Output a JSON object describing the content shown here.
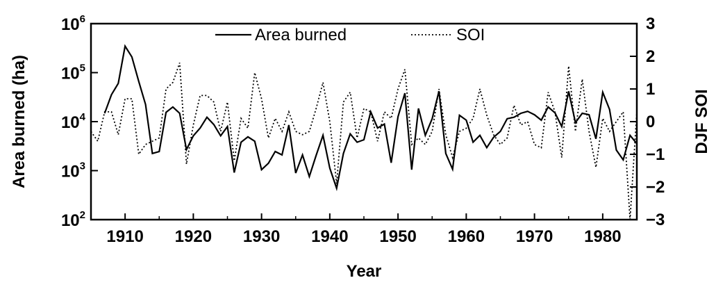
{
  "chart_data": {
    "type": "line",
    "title": "",
    "xlabel": "Year",
    "ylabel_left": "Area burned (ha)",
    "ylabel_right": "DJF SOI",
    "xlim": [
      1905,
      1985
    ],
    "ylim_left_log10": [
      2,
      6
    ],
    "ylim_right": [
      -3,
      3
    ],
    "x_ticks": [
      "1910",
      "1920",
      "1930",
      "1940",
      "1950",
      "1960",
      "1970",
      "1980"
    ],
    "x_tick_values": [
      1910,
      1920,
      1930,
      1940,
      1950,
      1960,
      1970,
      1980
    ],
    "y_left_ticks": [
      {
        "base": "10",
        "exp": "6",
        "value": 6
      },
      {
        "base": "10",
        "exp": "5",
        "value": 5
      },
      {
        "base": "10",
        "exp": "4",
        "value": 4
      },
      {
        "base": "10",
        "exp": "3",
        "value": 3
      },
      {
        "base": "10",
        "exp": "2",
        "value": 2
      }
    ],
    "y_right_ticks": [
      "3",
      "2",
      "1",
      "0",
      "−1",
      "−2",
      "−3"
    ],
    "y_right_tick_values": [
      3,
      2,
      1,
      0,
      -1,
      -2,
      -3
    ],
    "grid": false,
    "legend": {
      "placement": "top-center",
      "entries": [
        "Area burned",
        "SOI"
      ]
    },
    "series": [
      {
        "name": "Area burned",
        "axis": "left",
        "style": "solid",
        "x": [
          1907,
          1908,
          1909,
          1910,
          1911,
          1912,
          1913,
          1914,
          1915,
          1916,
          1917,
          1918,
          1919,
          1920,
          1921,
          1922,
          1923,
          1924,
          1925,
          1926,
          1927,
          1928,
          1929,
          1930,
          1931,
          1932,
          1933,
          1934,
          1935,
          1936,
          1937,
          1938,
          1939,
          1940,
          1941,
          1942,
          1943,
          1944,
          1945,
          1946,
          1947,
          1948,
          1949,
          1950,
          1951,
          1952,
          1953,
          1954,
          1955,
          1956,
          1957,
          1958,
          1959,
          1960,
          1961,
          1962,
          1963,
          1964,
          1965,
          1966,
          1967,
          1968,
          1969,
          1970,
          1971,
          1972,
          1973,
          1974,
          1975,
          1976,
          1977,
          1978,
          1979,
          1980,
          1981,
          1982,
          1983,
          1984,
          1985
        ],
        "values_log10": [
          4.17,
          4.55,
          4.78,
          5.54,
          5.32,
          4.82,
          4.35,
          3.35,
          3.39,
          4.19,
          4.3,
          4.17,
          3.43,
          3.71,
          3.87,
          4.09,
          3.94,
          3.71,
          3.9,
          2.96,
          3.58,
          3.69,
          3.6,
          3.02,
          3.15,
          3.39,
          3.32,
          3.93,
          2.95,
          3.32,
          2.88,
          3.31,
          3.72,
          3.05,
          2.64,
          3.35,
          3.75,
          3.58,
          3.63,
          4.2,
          3.87,
          3.95,
          3.16,
          4.1,
          4.58,
          3.02,
          4.27,
          3.72,
          4.06,
          4.62,
          3.35,
          3.03,
          4.13,
          4.03,
          3.58,
          3.72,
          3.47,
          3.68,
          3.8,
          4.06,
          4.09,
          4.17,
          4.21,
          4.14,
          4.03,
          4.3,
          4.18,
          3.9,
          4.62,
          3.98,
          4.17,
          4.14,
          3.65,
          4.6,
          4.25,
          3.42,
          3.22,
          3.72,
          3.55
        ]
      },
      {
        "name": "SOI",
        "axis": "right",
        "style": "dotted",
        "x": [
          1905,
          1906,
          1907,
          1908,
          1909,
          1910,
          1911,
          1912,
          1913,
          1914,
          1915,
          1916,
          1917,
          1918,
          1919,
          1920,
          1921,
          1922,
          1923,
          1924,
          1925,
          1926,
          1927,
          1928,
          1929,
          1930,
          1931,
          1932,
          1933,
          1934,
          1935,
          1936,
          1937,
          1938,
          1939,
          1940,
          1941,
          1942,
          1943,
          1944,
          1945,
          1946,
          1947,
          1948,
          1949,
          1950,
          1951,
          1952,
          1953,
          1954,
          1955,
          1956,
          1957,
          1958,
          1959,
          1960,
          1961,
          1962,
          1963,
          1964,
          1965,
          1966,
          1967,
          1968,
          1969,
          1970,
          1971,
          1972,
          1973,
          1974,
          1975,
          1976,
          1977,
          1978,
          1979,
          1980,
          1981,
          1982,
          1983,
          1984,
          1985
        ],
        "values": [
          -0.3,
          -0.6,
          0.3,
          0.3,
          -0.4,
          0.7,
          0.7,
          -1.0,
          -0.7,
          -0.6,
          -0.5,
          1.0,
          1.2,
          1.8,
          -1.3,
          -0.1,
          0.8,
          0.8,
          0.6,
          -0.3,
          0.6,
          -1.2,
          0.1,
          -0.2,
          1.5,
          0.7,
          -0.5,
          0.1,
          -0.3,
          0.3,
          -0.3,
          -0.4,
          -0.3,
          0.4,
          1.2,
          0.0,
          -1.9,
          0.6,
          0.9,
          -0.5,
          0.4,
          0.3,
          -0.6,
          0.3,
          0.1,
          1.0,
          1.6,
          -0.7,
          -0.5,
          -0.7,
          -0.3,
          1.0,
          -0.4,
          -1.1,
          -0.3,
          -0.2,
          0.1,
          1.0,
          0.2,
          -0.4,
          -0.7,
          -0.5,
          0.5,
          -0.1,
          0.0,
          -0.7,
          -0.8,
          0.9,
          0.3,
          -1.1,
          1.7,
          -0.3,
          1.3,
          -0.3,
          -1.4,
          0.1,
          -0.3,
          0.0,
          0.3,
          -3.0,
          0.3
        ]
      }
    ]
  }
}
